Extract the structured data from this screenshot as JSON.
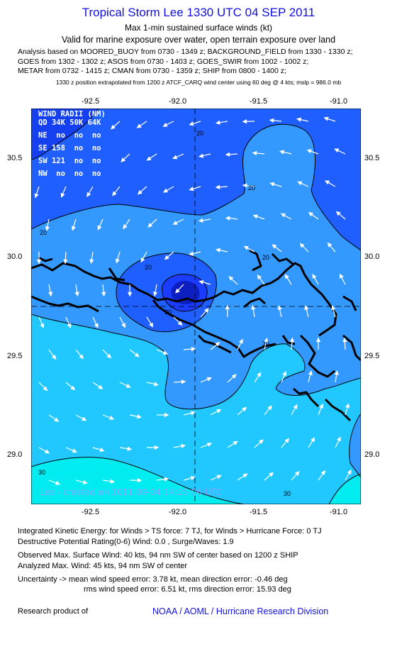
{
  "header": {
    "title": "Tropical Storm Lee 1330 UTC 04 SEP 2011",
    "subtitle": "Max 1-min sustained surface winds (kt)",
    "valid_line": "Valid for marine exposure over water, open terrain exposure over land",
    "analysis_lines": [
      "Analysis based on MOORED_BUOY from 0730 - 1349 z; BACKGROUND_FIELD from 1330 - 1330 z;",
      "GOES from 1302 - 1302 z; ASOS from 0730 - 1403 z; GOES_SWIR from 1002 - 1002 z;",
      "METAR from 0732 - 1415 z; CMAN from 0730 - 1359 z; SHIP from 0800 - 1400 z;"
    ],
    "position_note": "1330 z position extrapolated from 1200 z ATCF_CARQ wind center using 60 deg @ 4 kts; mslp = 986.0 mb"
  },
  "map": {
    "lon_ticks": [
      "-92.5",
      "-92.0",
      "-91.5",
      "-91.0"
    ],
    "lat_ticks": [
      "30.5",
      "30.0",
      "29.5",
      "29.0"
    ],
    "lon_range": [
      -92.88,
      -90.89
    ],
    "lat_range": [
      28.75,
      30.77
    ],
    "storm_center": {
      "lon": -91.9,
      "lat": 29.75
    },
    "wind_radii_table": {
      "header": "WIND RADII (NM)",
      "columns": "QD 34K 50K 64K",
      "rows": [
        "NE  no  no  no",
        "SE 158  no  no",
        "SW 121  no  no",
        "NW  no  no  no"
      ]
    },
    "contour_labels": [
      "20",
      "20",
      "20",
      "20",
      "20",
      "20",
      "20",
      "30",
      "30"
    ],
    "watermark": "Lee - created on 2011-09-04 14:25:06 UTC",
    "colors": {
      "lt_10": "#7fe0ff",
      "10_20": "#3399ff",
      "20_30": "#1f5fff",
      "30_40": "#1a3cff",
      "40_plus": "#0d1fc0",
      "water_south": "#00e5f5",
      "coastline": "#000000",
      "arrows": "#ffffff"
    }
  },
  "footer": {
    "ike_line": "Integrated Kinetic Energy:  for Winds > TS force: 7 TJ,  for Winds > Hurricane Force: 0 TJ",
    "dpr_line": "Destructive Potential Rating(0-6)   Wind: 0.0 , Surge/Waves: 1.9",
    "observed_line": "Observed Max. Surface Wind: 40 kts, 94 nm SW of center based on 1200 z SHIP",
    "analyzed_line": "Analyzed Max. Wind: 45 kts, 94 nm SW of center",
    "uncertainty_line1": "Uncertainty -> mean wind speed error: 3.78 kt,   mean direction error:  -0.46 deg",
    "uncertainty_line2": "rms wind speed error: 6.51 kt,   rms direction error: 15.93 deg",
    "research_label": "Research product of",
    "research_org": "NOAA / AOML / Hurricane Research Division"
  }
}
